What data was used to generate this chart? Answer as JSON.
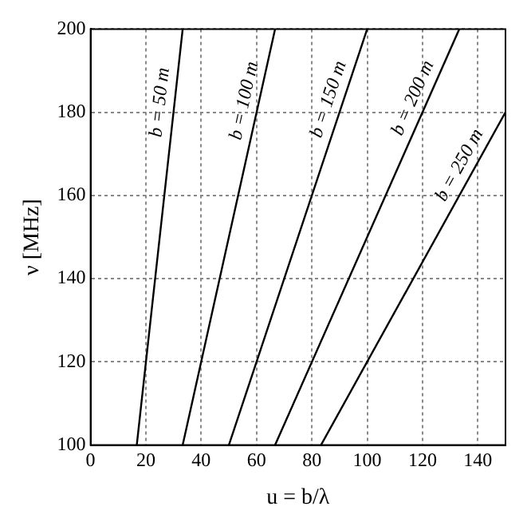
{
  "chart_data": {
    "type": "line",
    "xlabel": "u = b/λ",
    "ylabel": "ν [MHz]",
    "series": [
      {
        "name": "b = 50 m",
        "color": "#000000",
        "x": [
          16.7,
          33.3
        ],
        "values": [
          100,
          200
        ]
      },
      {
        "name": "b = 100 m",
        "color": "#000000",
        "x": [
          33.3,
          66.7
        ],
        "values": [
          100,
          200
        ]
      },
      {
        "name": "b = 150 m",
        "color": "#000000",
        "x": [
          50,
          100
        ],
        "values": [
          100,
          200
        ]
      },
      {
        "name": "b = 200 m",
        "color": "#000000",
        "x": [
          66.7,
          133.3
        ],
        "values": [
          100,
          200
        ]
      },
      {
        "name": "b = 250 m",
        "color": "#000000",
        "x": [
          83.3,
          150
        ],
        "values": [
          100,
          180
        ]
      }
    ],
    "xlim": [
      0,
      150
    ],
    "xticks": [
      0,
      20,
      40,
      60,
      80,
      100,
      120,
      140
    ],
    "ylim": [
      100,
      200
    ],
    "yticks": [
      100,
      120,
      140,
      160,
      180,
      200
    ],
    "grid": true,
    "legend": false,
    "marker": "none",
    "line_style": "solid"
  }
}
